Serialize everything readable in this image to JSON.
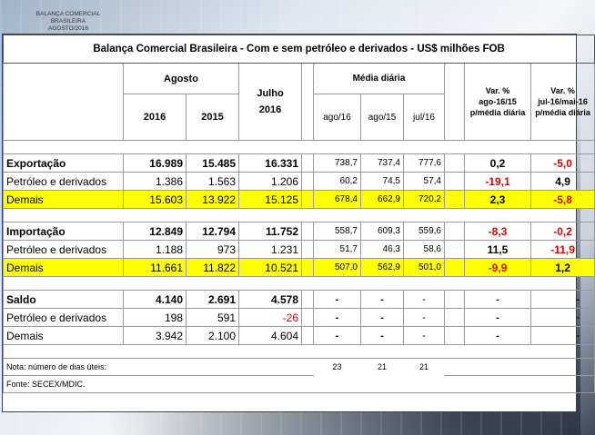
{
  "caption": {
    "line1": "BALANÇA COMERCIAL BRASILEIRA",
    "line2": "AGOSTO/2016"
  },
  "title": "Balança Comercial Brasileira - Com e sem petróleo e derivados - US$ milhões FOB",
  "headers": {
    "agosto": "Agosto",
    "y2016": "2016",
    "y2015": "2015",
    "julho_l1": "Julho",
    "julho_l2": "2016",
    "media_diaria": "Média diária",
    "ago16": "ago/16",
    "ago15": "ago/15",
    "jul16": "jul/16",
    "var1_l1": "Var. %",
    "var1_l2": "ago-16/15",
    "var1_l3": "p/média diária",
    "var2_l1": "Var. %",
    "var2_l2": "jul-16/mai-16",
    "var2_l3": "p/média diária"
  },
  "colors": {
    "highlight": "#ffff00",
    "negative": "#e00000",
    "border": "#2c3e8c"
  },
  "rows": [
    {
      "label": "Exportação",
      "ago16": "16.989",
      "ago15": "15.485",
      "jul16": "16.331",
      "md_ago16": "738,7",
      "md_ago15": "737,4",
      "md_jul16": "777,6",
      "var1": "0,2",
      "var2": "-5,0"
    },
    {
      "label": "Petróleo e derivados",
      "ago16": "1.386",
      "ago15": "1.563",
      "jul16": "1.206",
      "md_ago16": "60,2",
      "md_ago15": "74,5",
      "md_jul16": "57,4",
      "var1": "-19,1",
      "var2": "4,9"
    },
    {
      "label": "Demais",
      "ago16": "15.603",
      "ago15": "13.922",
      "jul16": "15.125",
      "md_ago16": "678,4",
      "md_ago15": "662,9",
      "md_jul16": "720,2",
      "var1": "2,3",
      "var2": "-5,8"
    },
    {
      "label": "Importação",
      "ago16": "12.849",
      "ago15": "12.794",
      "jul16": "11.752",
      "md_ago16": "558,7",
      "md_ago15": "609,3",
      "md_jul16": "559,6",
      "var1": "-8,3",
      "var2": "-0,2"
    },
    {
      "label": "Petróleo e derivados",
      "ago16": "1.188",
      "ago15": "973",
      "jul16": "1.231",
      "md_ago16": "51,7",
      "md_ago15": "46,3",
      "md_jul16": "58,6",
      "var1": "11,5",
      "var2": "-11,9"
    },
    {
      "label": "Demais",
      "ago16": "11.661",
      "ago15": "11.822",
      "jul16": "10.521",
      "md_ago16": "507,0",
      "md_ago15": "562,9",
      "md_jul16": "501,0",
      "var1": "-9,9",
      "var2": "1,2"
    },
    {
      "label": "Saldo",
      "ago16": "4.140",
      "ago15": "2.691",
      "jul16": "4.578",
      "md_ago16": "-",
      "md_ago15": "-",
      "md_jul16": "-",
      "var1": "-",
      "var2": "-"
    },
    {
      "label": "Petróleo e derivados",
      "ago16": "198",
      "ago15": "591",
      "jul16": "-26",
      "md_ago16": "-",
      "md_ago15": "-",
      "md_jul16": "-",
      "var1": "-",
      "var2": "-"
    },
    {
      "label": "Demais",
      "ago16": "3.942",
      "ago15": "2.100",
      "jul16": "4.604",
      "md_ago16": "-",
      "md_ago15": "-",
      "md_jul16": "-",
      "var1": "-",
      "var2": "-"
    }
  ],
  "notes": {
    "dias_label": "Nota: número de dias úteis:",
    "dias_ago16": "23",
    "dias_ago15": "21",
    "dias_jul16": "21",
    "fonte": "Fonte: SECEX/MDIC."
  }
}
